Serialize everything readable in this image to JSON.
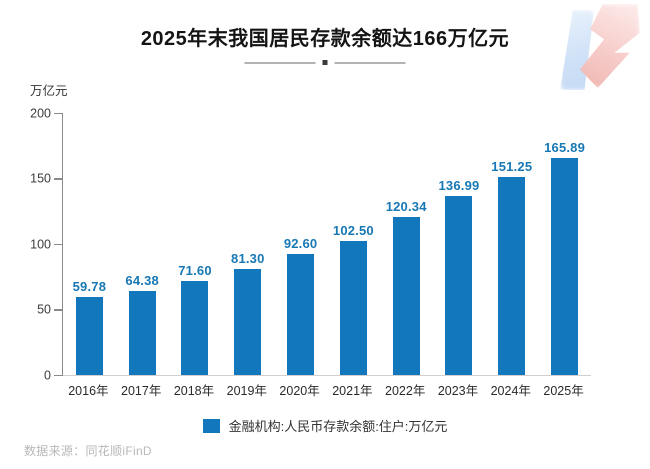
{
  "colors": {
    "bar": "#1277bd",
    "value_label": "#1878b4",
    "axis": "#8a8a8a",
    "baseline": "#d0d0d0"
  },
  "chart_data": {
    "type": "bar",
    "title": "2025年末我国居民存款余额达166万亿元",
    "categories": [
      "2016年",
      "2017年",
      "2018年",
      "2019年",
      "2020年",
      "2021年",
      "2022年",
      "2023年",
      "2024年",
      "2025年"
    ],
    "values": [
      59.78,
      64.38,
      71.6,
      81.3,
      92.6,
      102.5,
      120.34,
      136.99,
      151.25,
      165.89
    ],
    "value_labels": [
      "59.78",
      "64.38",
      "71.60",
      "81.30",
      "92.60",
      "102.50",
      "120.34",
      "136.99",
      "151.25",
      "165.89"
    ],
    "xlabel": "",
    "ylabel": "万亿元",
    "ylim": [
      0,
      200
    ],
    "yticks": [
      0,
      50,
      100,
      150,
      200
    ],
    "grid": false,
    "legend": [
      "金融机构:人民币存款余额:住户:万亿元"
    ],
    "legend_position": "bottom",
    "source": "数据来源：同花顺iFinD"
  }
}
